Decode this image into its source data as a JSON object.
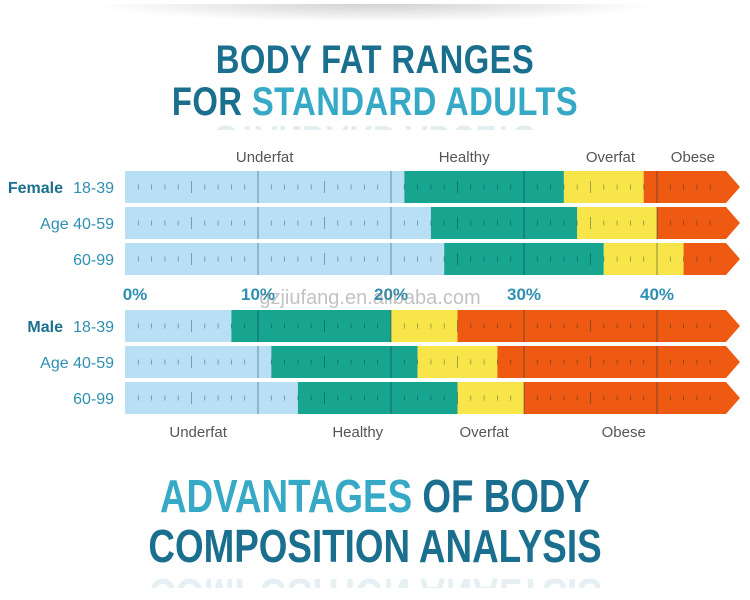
{
  "header": {
    "line1": "BODY FAT RANGES",
    "line2_prefix": "FOR ",
    "line2_highlight": "STANDARD ADULTS"
  },
  "footer": {
    "line1_highlight": "ADVANTAGES",
    "line1_rest": " OF BODY",
    "line2": "COMPOSITION ANALYSIS"
  },
  "watermark": "gzjiufang.en.alibaba.com",
  "colors": {
    "underfat": "#b9dff5",
    "healthy": "#17a58f",
    "overfat": "#f7e54a",
    "obese": "#ee5a12",
    "label_primary": "#1b6f8e",
    "label_secondary": "#2e8fb1"
  },
  "chart_data": {
    "type": "bar",
    "title": "BODY FAT RANGES FOR STANDARD ADULTS",
    "xlabel": "",
    "ylabel": "",
    "x_unit": "% body fat",
    "xlim": [
      0,
      46
    ],
    "x_ticks": [
      {
        "value": 0,
        "label": "0%"
      },
      {
        "value": 10,
        "label": "10%"
      },
      {
        "value": 20,
        "label": "20%"
      },
      {
        "value": 30,
        "label": "30%"
      },
      {
        "value": 40,
        "label": "40%"
      }
    ],
    "categories": [
      "Underfat",
      "Healthy",
      "Overfat",
      "Obese"
    ],
    "groups": [
      {
        "sex": "Female",
        "category_labels": [
          {
            "label": "Underfat",
            "value": 10.5
          },
          {
            "label": "Healthy",
            "value": 25.5
          },
          {
            "label": "Overfat",
            "value": 36.5
          },
          {
            "label": "Obese",
            "value": 42.7
          }
        ],
        "rows": [
          {
            "sex_label": "Female",
            "age_label": "18-39",
            "underfat_max": 21,
            "healthy_max": 33,
            "overfat_max": 39
          },
          {
            "sex_label": "",
            "age_label": "Age 40-59",
            "underfat_max": 23,
            "healthy_max": 34,
            "overfat_max": 40
          },
          {
            "sex_label": "",
            "age_label": "60-99",
            "underfat_max": 24,
            "healthy_max": 36,
            "overfat_max": 42
          }
        ]
      },
      {
        "sex": "Male",
        "category_labels": [
          {
            "label": "Underfat",
            "value": 5.5
          },
          {
            "label": "Healthy",
            "value": 17.5
          },
          {
            "label": "Overfat",
            "value": 27
          },
          {
            "label": "Obese",
            "value": 37.5
          }
        ],
        "rows": [
          {
            "sex_label": "Male",
            "age_label": "18-39",
            "underfat_max": 8,
            "healthy_max": 20,
            "overfat_max": 25
          },
          {
            "sex_label": "",
            "age_label": "Age 40-59",
            "underfat_max": 11,
            "healthy_max": 22,
            "overfat_max": 28
          },
          {
            "sex_label": "",
            "age_label": "60-99",
            "underfat_max": 13,
            "healthy_max": 25,
            "overfat_max": 30
          }
        ]
      }
    ],
    "legend": "none",
    "grid": false
  }
}
